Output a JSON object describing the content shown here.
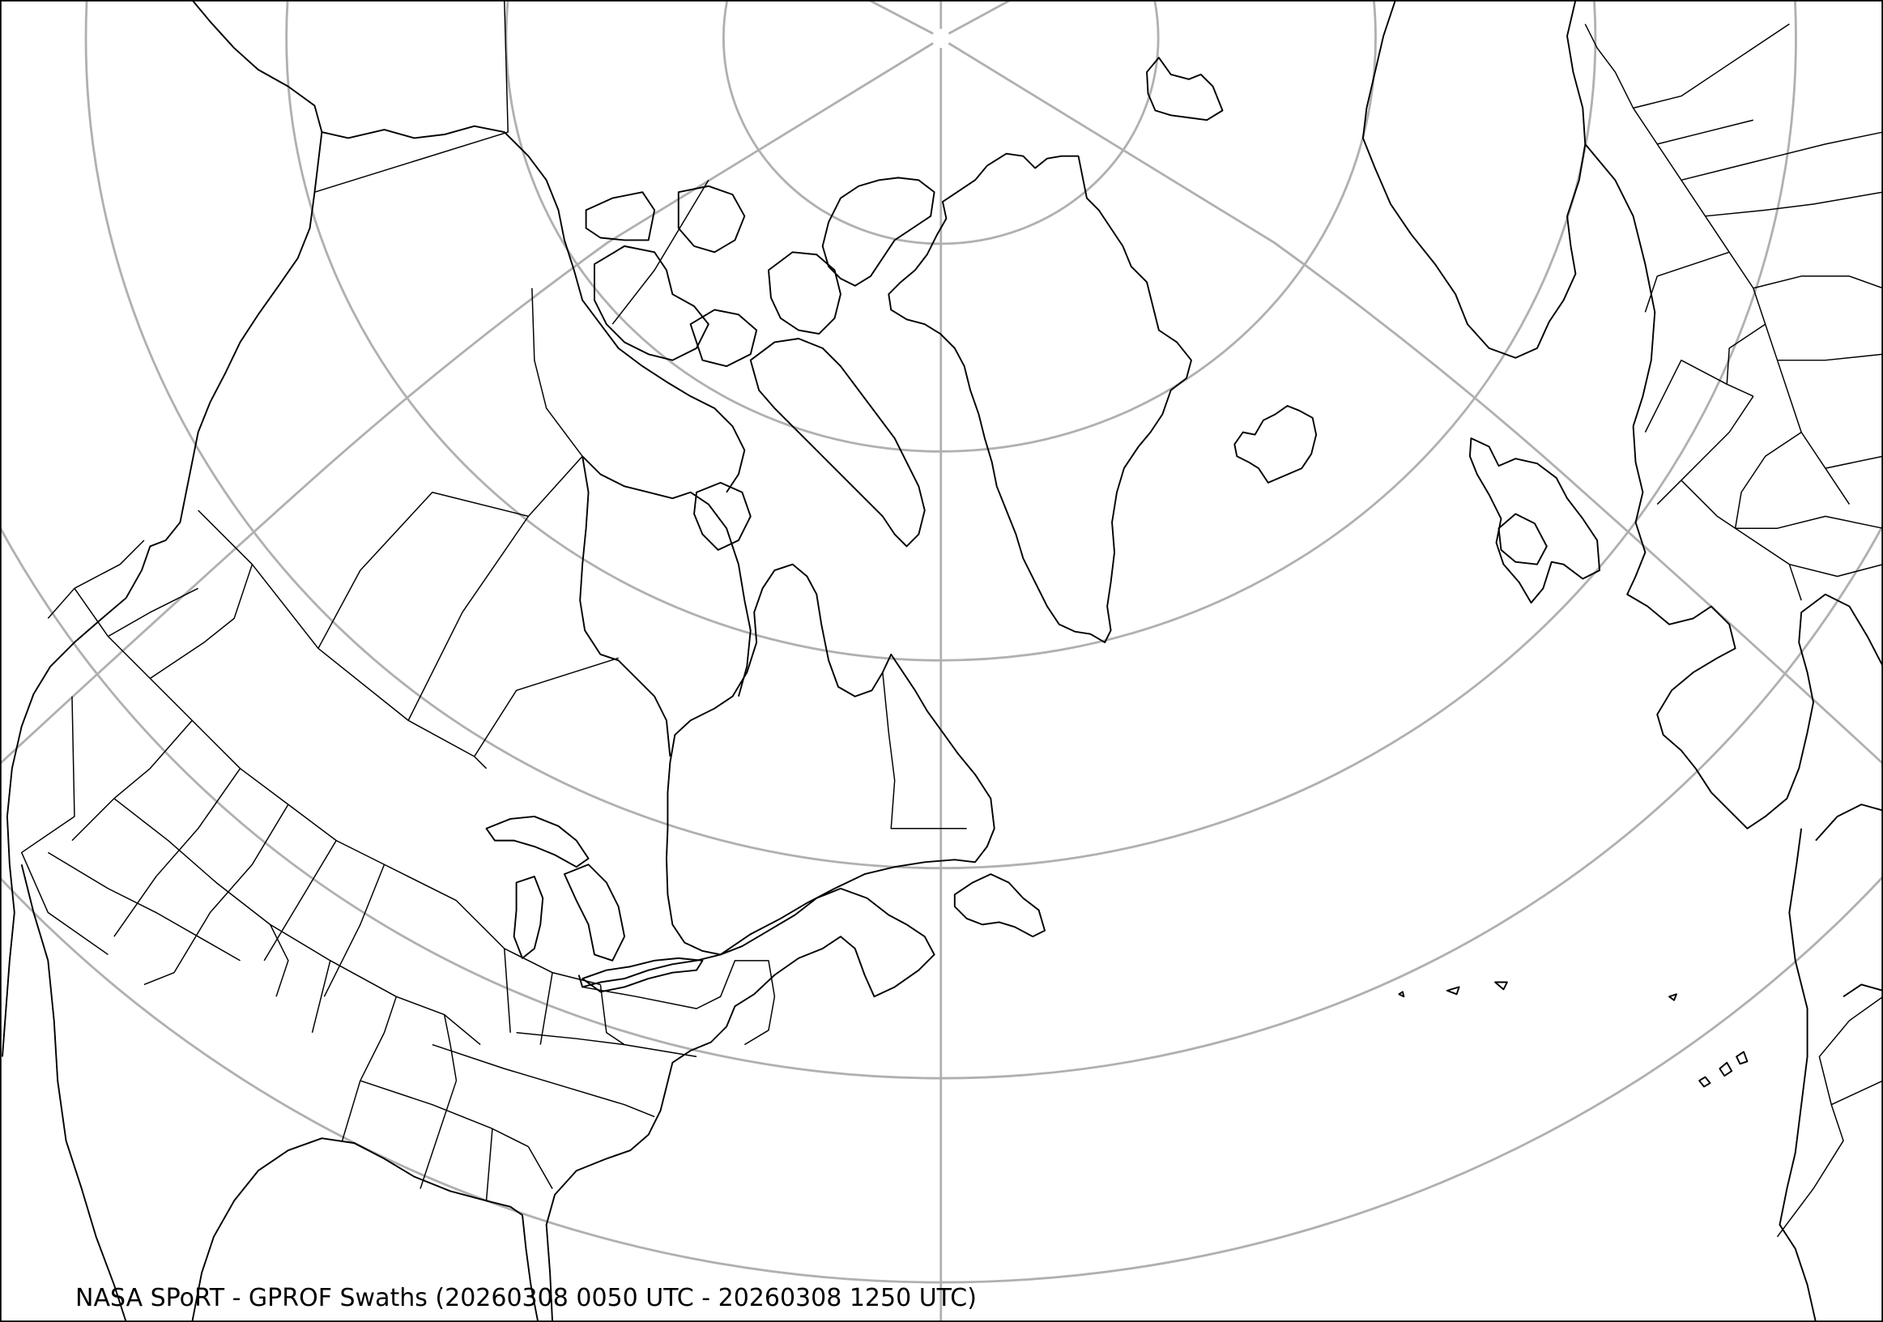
{
  "map": {
    "title": "NASA SPoRT - GPROF Swaths (20260308 0050 UTC - 20260308 1250 UTC)",
    "projection": "north-polar",
    "colors": {
      "coastline": "#000000",
      "graticule": "#b0b0b0",
      "background": "#ffffff"
    }
  }
}
